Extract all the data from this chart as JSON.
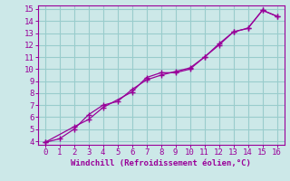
{
  "xlabel": "Windchill (Refroidissement éolien,°C)",
  "xlim": [
    -0.5,
    16.5
  ],
  "ylim": [
    3.7,
    15.3
  ],
  "xticks": [
    0,
    1,
    2,
    3,
    4,
    5,
    6,
    7,
    8,
    9,
    10,
    11,
    12,
    13,
    14,
    15,
    16
  ],
  "yticks": [
    4,
    5,
    6,
    7,
    8,
    9,
    10,
    11,
    12,
    13,
    14,
    15
  ],
  "line1_x": [
    0,
    1,
    2,
    3,
    4,
    5,
    6,
    7,
    8,
    9,
    10,
    11,
    12,
    13,
    14,
    15,
    16
  ],
  "line1_y": [
    3.9,
    4.2,
    5.0,
    6.2,
    7.0,
    7.3,
    8.3,
    9.1,
    9.5,
    9.8,
    10.1,
    11.0,
    12.0,
    13.1,
    13.4,
    14.9,
    14.4
  ],
  "line2_x": [
    0,
    2,
    3,
    4,
    6,
    7,
    8,
    9,
    10,
    11,
    12,
    13,
    14,
    15,
    16
  ],
  "line2_y": [
    3.9,
    5.2,
    5.8,
    6.8,
    8.1,
    9.3,
    9.7,
    9.7,
    10.0,
    11.0,
    12.1,
    13.1,
    13.4,
    14.9,
    14.4
  ],
  "line_color": "#990099",
  "bg_color": "#cce8e8",
  "grid_color": "#99cccc",
  "text_color": "#990099",
  "font_family": "monospace",
  "xlabel_fontsize": 6.5,
  "tick_fontsize": 6.5
}
